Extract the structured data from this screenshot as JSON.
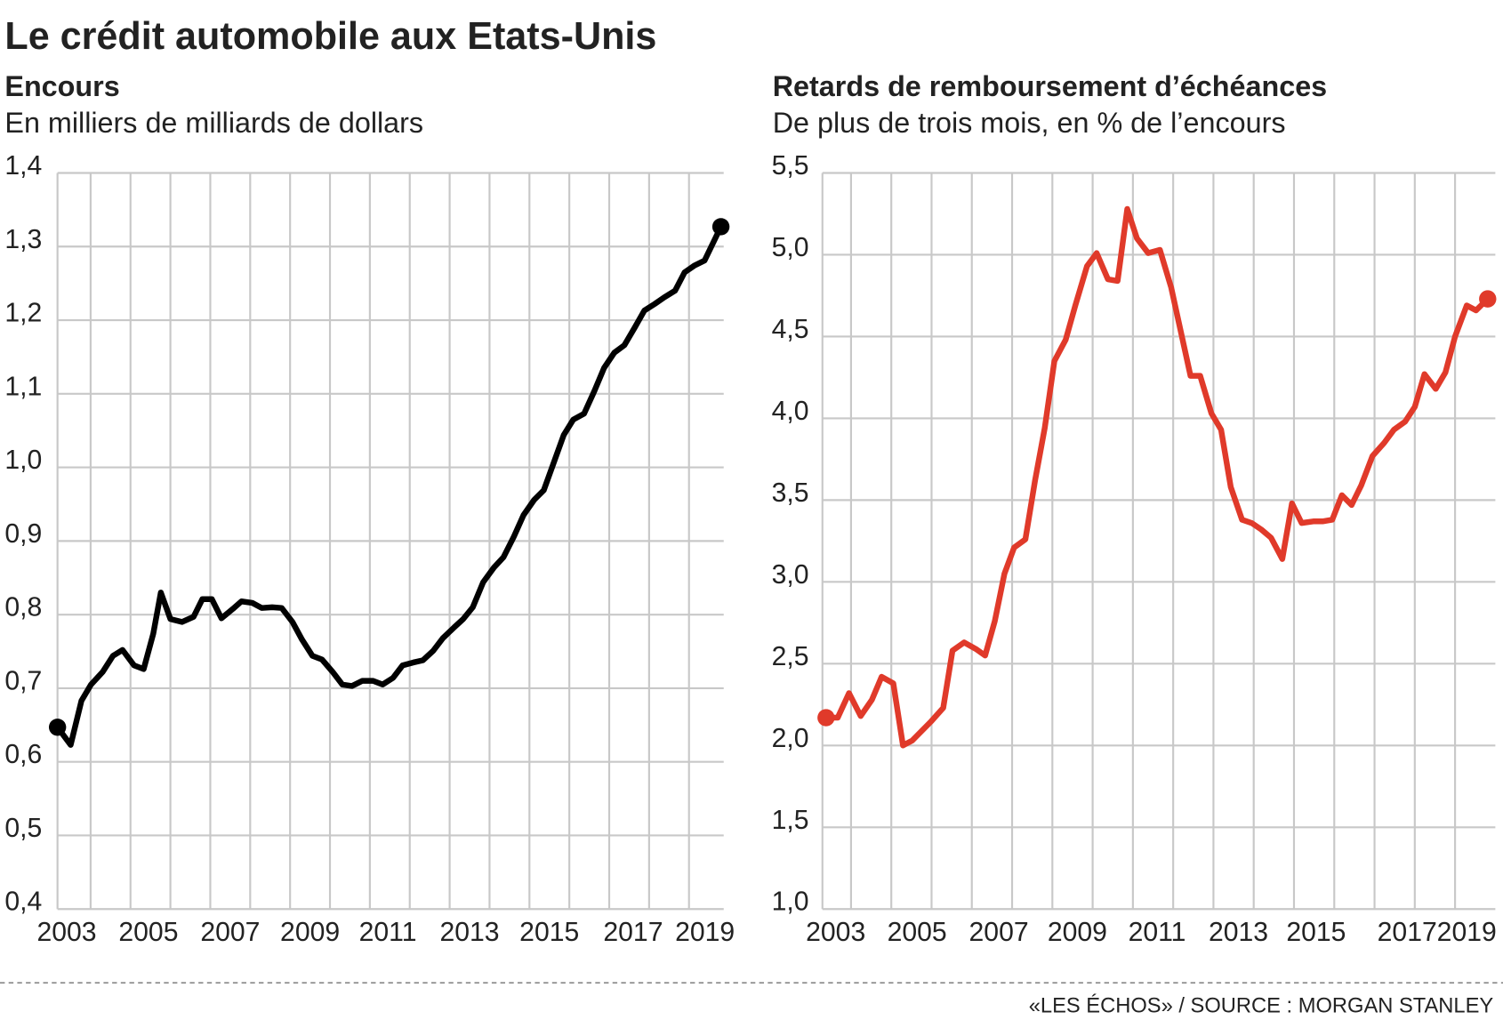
{
  "title": "Le crédit automobile aux Etats-Unis",
  "source": "«LES ÉCHOS» / SOURCE : MORGAN STANLEY",
  "chart_data": [
    {
      "type": "line",
      "title": "Encours",
      "subtitle": "En milliers de milliards de dollars",
      "xlim": [
        2003.17,
        2019.87
      ],
      "ylim": [
        0.4,
        1.4
      ],
      "yticks": [
        {
          "value": 0.4,
          "label": "0,4"
        },
        {
          "value": 0.5,
          "label": "0,5"
        },
        {
          "value": 0.6,
          "label": "0,6"
        },
        {
          "value": 0.7,
          "label": "0,7"
        },
        {
          "value": 0.8,
          "label": "0,8"
        },
        {
          "value": 0.9,
          "label": "0,9"
        },
        {
          "value": 1.0,
          "label": "1,0"
        },
        {
          "value": 1.1,
          "label": "1,1"
        },
        {
          "value": 1.2,
          "label": "1,2"
        },
        {
          "value": 1.3,
          "label": "1,3"
        },
        {
          "value": 1.4,
          "label": "1,4"
        }
      ],
      "xticks": [
        {
          "value": 2003.4,
          "label": "2003"
        },
        {
          "value": 2005.45,
          "label": "2005"
        },
        {
          "value": 2007.5,
          "label": "2007"
        },
        {
          "value": 2009.5,
          "label": "2009"
        },
        {
          "value": 2011.45,
          "label": "2011"
        },
        {
          "value": 2013.5,
          "label": "2013"
        },
        {
          "value": 2015.5,
          "label": "2015"
        },
        {
          "value": 2017.6,
          "label": "2017"
        },
        {
          "value": 2019.4,
          "label": "2019"
        }
      ],
      "xgrid": [
        2004,
        2005,
        2006,
        2007,
        2008,
        2009,
        2010,
        2011,
        2012,
        2013,
        2014,
        2015,
        2016,
        2017,
        2018,
        2019
      ],
      "grid": true,
      "x": [
        2003.17,
        2003.5,
        2003.77,
        2004.01,
        2004.3,
        2004.56,
        2004.8,
        2005.09,
        2005.33,
        2005.57,
        2005.76,
        2006.0,
        2006.29,
        2006.58,
        2006.8,
        2007.04,
        2007.28,
        2007.57,
        2007.78,
        2008.05,
        2008.29,
        2008.55,
        2008.79,
        2009.06,
        2009.3,
        2009.56,
        2009.8,
        2010.07,
        2010.31,
        2010.55,
        2010.81,
        2011.08,
        2011.32,
        2011.58,
        2011.82,
        2012.09,
        2012.33,
        2012.59,
        2012.83,
        2013.1,
        2013.34,
        2013.58,
        2013.84,
        2014.11,
        2014.35,
        2014.61,
        2014.85,
        2015.12,
        2015.36,
        2015.62,
        2015.86,
        2016.1,
        2016.37,
        2016.63,
        2016.87,
        2017.13,
        2017.38,
        2017.64,
        2017.88,
        2018.14,
        2018.38,
        2018.65,
        2018.89,
        2019.13,
        2019.39,
        2019.8
      ],
      "series": [
        {
          "color": "#000000",
          "values": [
            0.647,
            0.623,
            0.683,
            0.705,
            0.722,
            0.744,
            0.752,
            0.731,
            0.726,
            0.774,
            0.83,
            0.794,
            0.79,
            0.797,
            0.821,
            0.821,
            0.795,
            0.808,
            0.818,
            0.816,
            0.809,
            0.81,
            0.809,
            0.79,
            0.766,
            0.744,
            0.739,
            0.722,
            0.705,
            0.703,
            0.71,
            0.71,
            0.705,
            0.714,
            0.731,
            0.735,
            0.738,
            0.751,
            0.768,
            0.782,
            0.794,
            0.81,
            0.844,
            0.864,
            0.878,
            0.906,
            0.935,
            0.956,
            0.969,
            1.008,
            1.044,
            1.065,
            1.073,
            1.104,
            1.135,
            1.156,
            1.166,
            1.19,
            1.213,
            1.222,
            1.231,
            1.24,
            1.265,
            1.274,
            1.281,
            1.327
          ]
        }
      ]
    },
    {
      "type": "line",
      "title": "Retards de remboursement d’échéances",
      "subtitle": "De plus de trois mois, en % de l’encours",
      "xlim": [
        2003.29,
        2020.0
      ],
      "ylim": [
        1.0,
        5.5
      ],
      "yticks": [
        {
          "value": 1.0,
          "label": "1,0"
        },
        {
          "value": 1.5,
          "label": "1,5"
        },
        {
          "value": 2.0,
          "label": "2,0"
        },
        {
          "value": 2.5,
          "label": "2,5"
        },
        {
          "value": 3.0,
          "label": "3,0"
        },
        {
          "value": 3.5,
          "label": "3,5"
        },
        {
          "value": 4.0,
          "label": "4,0"
        },
        {
          "value": 4.5,
          "label": "4,5"
        },
        {
          "value": 5.0,
          "label": "5,0"
        },
        {
          "value": 5.5,
          "label": "5,5"
        }
      ],
      "xticks": [
        {
          "value": 2003.62,
          "label": "2003"
        },
        {
          "value": 2005.64,
          "label": "2005"
        },
        {
          "value": 2007.67,
          "label": "2007"
        },
        {
          "value": 2009.62,
          "label": "2009"
        },
        {
          "value": 2011.6,
          "label": "2011"
        },
        {
          "value": 2013.62,
          "label": "2013"
        },
        {
          "value": 2015.55,
          "label": "2015"
        },
        {
          "value": 2017.81,
          "label": "2017"
        },
        {
          "value": 2019.29,
          "label": "2019"
        }
      ],
      "xgrid": [
        2004,
        2005,
        2006,
        2007,
        2008,
        2009,
        2010,
        2011,
        2012,
        2013,
        2014,
        2015,
        2016,
        2017,
        2018,
        2019
      ],
      "grid": true,
      "x": [
        2003.38,
        2003.67,
        2003.95,
        2004.24,
        2004.52,
        2004.76,
        2005.05,
        2005.29,
        2005.52,
        2005.76,
        2006.0,
        2006.29,
        2006.52,
        2006.81,
        2007.1,
        2007.33,
        2007.57,
        2007.81,
        2008.05,
        2008.33,
        2008.57,
        2008.81,
        2009.05,
        2009.33,
        2009.57,
        2009.86,
        2010.1,
        2010.38,
        2010.62,
        2010.86,
        2011.1,
        2011.38,
        2011.67,
        2011.95,
        2012.19,
        2012.43,
        2012.67,
        2012.95,
        2013.19,
        2013.43,
        2013.71,
        2013.95,
        2014.19,
        2014.43,
        2014.71,
        2014.95,
        2015.19,
        2015.48,
        2015.71,
        2015.95,
        2016.19,
        2016.43,
        2016.67,
        2016.95,
        2017.24,
        2017.48,
        2017.76,
        2018.0,
        2018.24,
        2018.52,
        2018.76,
        2019.0,
        2019.29,
        2019.52,
        2019.81
      ],
      "series": [
        {
          "color": "#e03a2a",
          "values": [
            2.17,
            2.17,
            2.32,
            2.18,
            2.28,
            2.42,
            2.38,
            2.0,
            2.03,
            2.09,
            2.15,
            2.23,
            2.58,
            2.63,
            2.59,
            2.55,
            2.76,
            3.05,
            3.21,
            3.26,
            3.62,
            3.94,
            4.35,
            4.48,
            4.69,
            4.93,
            5.01,
            4.85,
            4.84,
            5.28,
            5.1,
            5.01,
            5.03,
            4.8,
            4.53,
            4.26,
            4.26,
            4.03,
            3.93,
            3.58,
            3.38,
            3.36,
            3.32,
            3.27,
            3.14,
            3.48,
            3.36,
            3.37,
            3.37,
            3.38,
            3.53,
            3.47,
            3.59,
            3.77,
            3.85,
            3.93,
            3.98,
            4.07,
            4.27,
            4.18,
            4.28,
            4.5,
            4.69,
            4.66,
            4.73
          ]
        }
      ]
    }
  ]
}
